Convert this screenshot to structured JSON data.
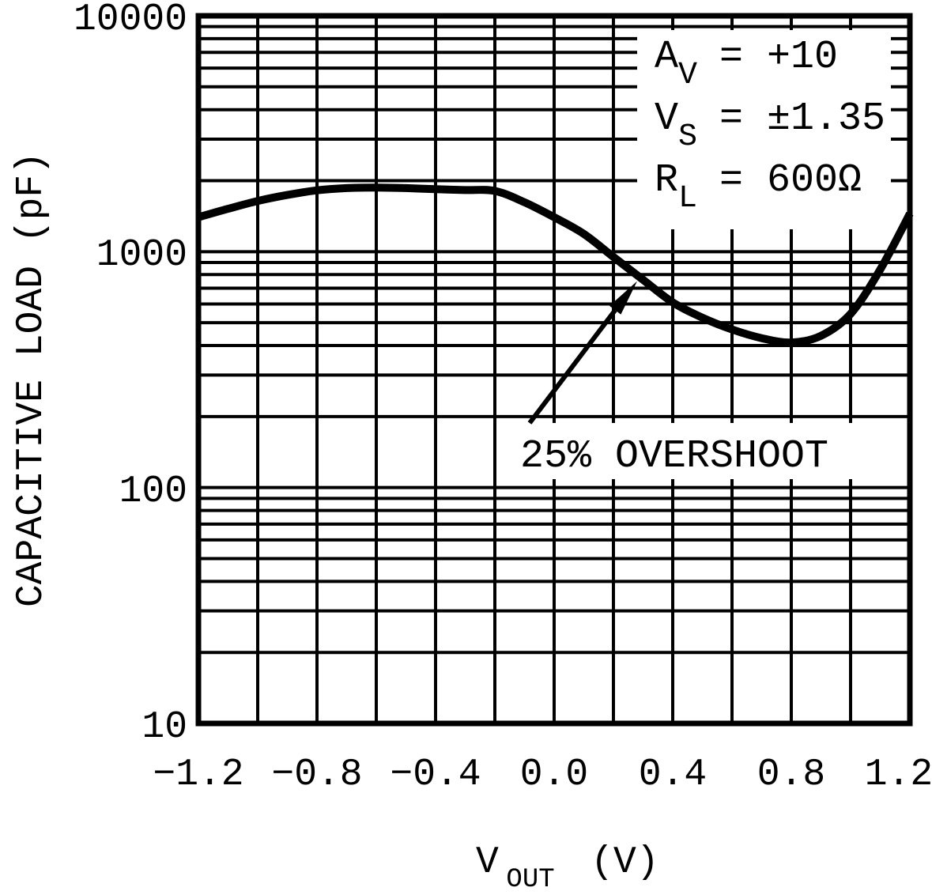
{
  "figure": {
    "background_color": "#ffffff",
    "ink_color": "#000000"
  },
  "chart_data": {
    "type": "line",
    "title": "",
    "xlabel": {
      "main": "V",
      "sub": "OUT",
      "unit": "(V)"
    },
    "ylabel": "CAPACITIVE LOAD (pF)",
    "x_axis": {
      "min": -1.2,
      "max": 1.2,
      "grid_step": 0.2,
      "tick_labels": [
        "−1.2",
        "−0.8",
        "−0.4",
        "0.0",
        "0.4",
        "0.8",
        "1.2"
      ]
    },
    "y_axis": {
      "scale": "log",
      "min": 10,
      "max": 10000,
      "minor_grid": true,
      "tick_labels": [
        "10",
        "100",
        "1000",
        "10000"
      ]
    },
    "grid": "on",
    "legend": "none",
    "series": [
      {
        "name": "capacitive load for 25% overshoot",
        "x": [
          -1.2,
          -1.1,
          -1.0,
          -0.9,
          -0.8,
          -0.7,
          -0.6,
          -0.5,
          -0.4,
          -0.3,
          -0.2,
          -0.1,
          0.0,
          0.1,
          0.2,
          0.3,
          0.4,
          0.5,
          0.6,
          0.7,
          0.8,
          0.9,
          1.0,
          1.1,
          1.2
        ],
        "y": [
          1400,
          1520,
          1640,
          1740,
          1820,
          1860,
          1870,
          1860,
          1840,
          1825,
          1810,
          1620,
          1400,
          1190,
          950,
          760,
          610,
          525,
          468,
          430,
          412,
          440,
          545,
          840,
          1450
        ]
      }
    ],
    "conditions": [
      {
        "label": "A",
        "sub": "V",
        "eq": "=",
        "value": "+10"
      },
      {
        "label": "V",
        "sub": "S",
        "eq": "=",
        "value": "±1.35"
      },
      {
        "label": "R",
        "sub": "L",
        "eq": "=",
        "value": "600Ω"
      }
    ],
    "callout": {
      "text": "25% OVERSHOOT",
      "points_to": {
        "x": 0.28,
        "y": 750
      }
    }
  }
}
